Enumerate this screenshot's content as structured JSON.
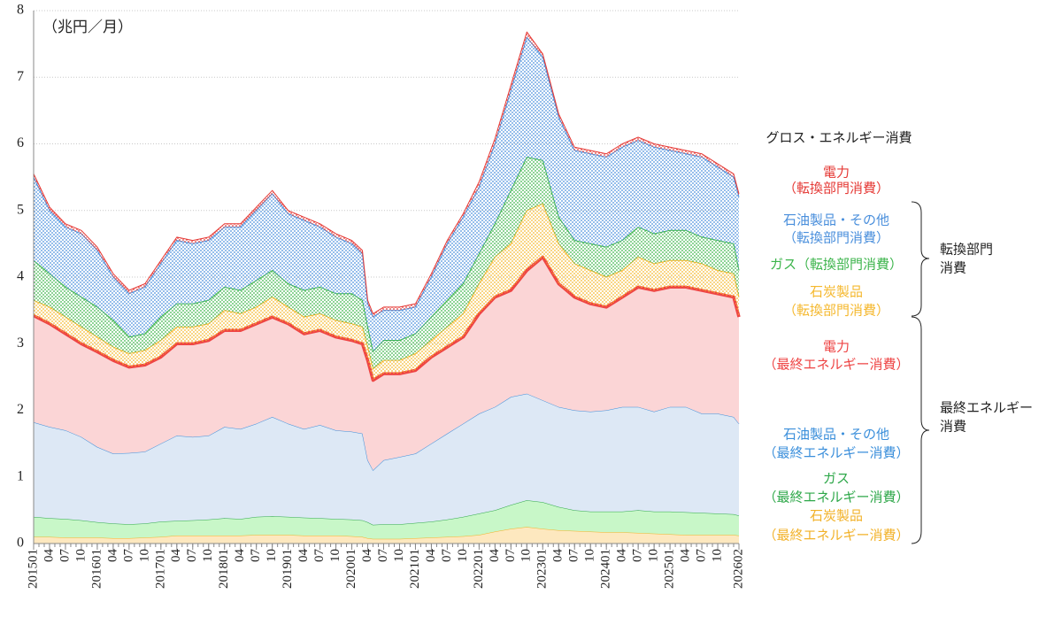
{
  "chart_data": {
    "type": "stacked-area",
    "unit_label": "（兆円／月）",
    "total_label": "グロス・エネルギー消費",
    "x": [
      "201501",
      "201504",
      "201507",
      "201510",
      "201601",
      "201604",
      "201607",
      "201610",
      "201701",
      "201704",
      "201707",
      "201710",
      "201801",
      "201804",
      "201807",
      "201810",
      "201901",
      "201904",
      "201907",
      "201910",
      "202001",
      "202003",
      "202004",
      "202005",
      "202007",
      "202010",
      "202101",
      "202104",
      "202107",
      "202110",
      "202201",
      "202204",
      "202207",
      "202210",
      "202301",
      "202304",
      "202307",
      "202310",
      "202401",
      "202404",
      "202407",
      "202410",
      "202501",
      "202504",
      "202507",
      "202510",
      "202601",
      "202602"
    ],
    "xlim": [
      "201501",
      "202602"
    ],
    "xticks": [
      {
        "value": "201501",
        "label": "201501"
      },
      {
        "value": "201504",
        "label": "04"
      },
      {
        "value": "201507",
        "label": "07"
      },
      {
        "value": "201510",
        "label": "10"
      },
      {
        "value": "201601",
        "label": "201601"
      },
      {
        "value": "201604",
        "label": "04"
      },
      {
        "value": "201607",
        "label": "07"
      },
      {
        "value": "201610",
        "label": "10"
      },
      {
        "value": "201701",
        "label": "201701"
      },
      {
        "value": "201704",
        "label": "04"
      },
      {
        "value": "201707",
        "label": "07"
      },
      {
        "value": "201710",
        "label": "10"
      },
      {
        "value": "201801",
        "label": "201801"
      },
      {
        "value": "201804",
        "label": "04"
      },
      {
        "value": "201807",
        "label": "07"
      },
      {
        "value": "201810",
        "label": "10"
      },
      {
        "value": "201901",
        "label": "201901"
      },
      {
        "value": "201904",
        "label": "04"
      },
      {
        "value": "201907",
        "label": "07"
      },
      {
        "value": "201910",
        "label": "10"
      },
      {
        "value": "202001",
        "label": "202001"
      },
      {
        "value": "202004",
        "label": "04"
      },
      {
        "value": "202007",
        "label": "07"
      },
      {
        "value": "202010",
        "label": "10"
      },
      {
        "value": "202101",
        "label": "202101"
      },
      {
        "value": "202104",
        "label": "04"
      },
      {
        "value": "202107",
        "label": "07"
      },
      {
        "value": "202110",
        "label": "10"
      },
      {
        "value": "202201",
        "label": "202201"
      },
      {
        "value": "202204",
        "label": "04"
      },
      {
        "value": "202207",
        "label": "07"
      },
      {
        "value": "202210",
        "label": "10"
      },
      {
        "value": "202301",
        "label": "202301"
      },
      {
        "value": "202304",
        "label": "04"
      },
      {
        "value": "202307",
        "label": "07"
      },
      {
        "value": "202310",
        "label": "10"
      },
      {
        "value": "202401",
        "label": "202401"
      },
      {
        "value": "202404",
        "label": "04"
      },
      {
        "value": "202407",
        "label": "07"
      },
      {
        "value": "202410",
        "label": "10"
      },
      {
        "value": "202501",
        "label": "202501"
      },
      {
        "value": "202504",
        "label": "04"
      },
      {
        "value": "202507",
        "label": "07"
      },
      {
        "value": "202510",
        "label": "10"
      },
      {
        "value": "202602",
        "label": "202602"
      }
    ],
    "ylim": [
      0,
      8
    ],
    "yticks": [
      0,
      1,
      2,
      3,
      4,
      5,
      6,
      7,
      8
    ],
    "grid": true,
    "series": [
      {
        "name": [
          "石炭製品",
          "（最終エネルギー消費）"
        ],
        "color": "#f2b22a",
        "fill": "#fde8bf",
        "values": [
          0.1,
          0.1,
          0.09,
          0.09,
          0.09,
          0.08,
          0.08,
          0.09,
          0.1,
          0.12,
          0.12,
          0.12,
          0.12,
          0.12,
          0.13,
          0.13,
          0.13,
          0.12,
          0.12,
          0.12,
          0.11,
          0.1,
          0.08,
          0.07,
          0.07,
          0.07,
          0.08,
          0.09,
          0.1,
          0.11,
          0.13,
          0.18,
          0.22,
          0.25,
          0.22,
          0.2,
          0.19,
          0.18,
          0.17,
          0.17,
          0.16,
          0.15,
          0.14,
          0.13,
          0.13,
          0.13,
          0.13,
          0.12
        ]
      },
      {
        "name": [
          "ガス",
          "（最終エネルギー消費）"
        ],
        "color": "#2fa84a",
        "fill": "#c8f7c8",
        "values": [
          0.3,
          0.28,
          0.28,
          0.26,
          0.23,
          0.22,
          0.21,
          0.21,
          0.23,
          0.22,
          0.23,
          0.24,
          0.26,
          0.25,
          0.27,
          0.28,
          0.27,
          0.27,
          0.26,
          0.25,
          0.25,
          0.25,
          0.24,
          0.21,
          0.22,
          0.22,
          0.23,
          0.24,
          0.26,
          0.29,
          0.32,
          0.32,
          0.36,
          0.4,
          0.4,
          0.35,
          0.31,
          0.3,
          0.31,
          0.31,
          0.34,
          0.33,
          0.34,
          0.34,
          0.33,
          0.32,
          0.31,
          0.3
        ]
      },
      {
        "name": [
          "石油製品・その他",
          "（最終エネルギー消費）"
        ],
        "color": "#3b8fdb",
        "fill": "#dde8f5",
        "values": [
          1.42,
          1.37,
          1.33,
          1.25,
          1.13,
          1.05,
          1.07,
          1.08,
          1.17,
          1.28,
          1.25,
          1.26,
          1.37,
          1.35,
          1.4,
          1.49,
          1.4,
          1.33,
          1.4,
          1.33,
          1.32,
          1.3,
          0.93,
          0.82,
          0.96,
          1.01,
          1.04,
          1.17,
          1.29,
          1.4,
          1.5,
          1.55,
          1.62,
          1.6,
          1.53,
          1.5,
          1.5,
          1.5,
          1.52,
          1.57,
          1.55,
          1.5,
          1.57,
          1.58,
          1.49,
          1.5,
          1.46,
          1.38
        ]
      },
      {
        "name": [
          "電力",
          "（最終エネルギー消費）"
        ],
        "color": "#ee4444",
        "fill": "#fbd5d6",
        "line_width": 3.5,
        "values": [
          1.6,
          1.55,
          1.45,
          1.4,
          1.43,
          1.4,
          1.29,
          1.3,
          1.3,
          1.38,
          1.4,
          1.43,
          1.45,
          1.48,
          1.5,
          1.5,
          1.5,
          1.43,
          1.42,
          1.4,
          1.37,
          1.35,
          1.5,
          1.35,
          1.3,
          1.25,
          1.25,
          1.3,
          1.3,
          1.3,
          1.5,
          1.65,
          1.6,
          1.85,
          2.15,
          1.85,
          1.7,
          1.62,
          1.55,
          1.65,
          1.8,
          1.82,
          1.8,
          1.8,
          1.85,
          1.8,
          1.8,
          1.6
        ]
      },
      {
        "name": [
          "石炭製品",
          "（転換部門消費）"
        ],
        "color": "#f5b82e",
        "fill_style": "dots",
        "values": [
          0.23,
          0.25,
          0.25,
          0.25,
          0.22,
          0.2,
          0.2,
          0.22,
          0.25,
          0.25,
          0.25,
          0.25,
          0.3,
          0.25,
          0.25,
          0.3,
          0.25,
          0.25,
          0.25,
          0.25,
          0.25,
          0.25,
          0.2,
          0.17,
          0.2,
          0.2,
          0.25,
          0.25,
          0.3,
          0.35,
          0.45,
          0.6,
          0.7,
          0.9,
          0.8,
          0.6,
          0.5,
          0.5,
          0.45,
          0.4,
          0.45,
          0.4,
          0.4,
          0.4,
          0.4,
          0.35,
          0.35,
          0.3
        ]
      },
      {
        "name": [
          "ガス（転換部門消費）"
        ],
        "color": "#3cb44b",
        "fill_style": "dots",
        "values": [
          0.6,
          0.5,
          0.45,
          0.45,
          0.45,
          0.4,
          0.25,
          0.25,
          0.35,
          0.35,
          0.35,
          0.35,
          0.35,
          0.35,
          0.4,
          0.4,
          0.35,
          0.4,
          0.4,
          0.4,
          0.45,
          0.4,
          0.3,
          0.26,
          0.3,
          0.3,
          0.3,
          0.35,
          0.4,
          0.45,
          0.45,
          0.5,
          0.8,
          0.8,
          0.65,
          0.4,
          0.35,
          0.4,
          0.45,
          0.45,
          0.45,
          0.45,
          0.45,
          0.45,
          0.4,
          0.45,
          0.45,
          0.4
        ]
      },
      {
        "name": [
          "石油製品・その他",
          "（転換部門消費）"
        ],
        "color": "#4a8fdc",
        "fill_style": "dots",
        "values": [
          1.25,
          0.95,
          0.9,
          0.95,
          0.85,
          0.65,
          0.65,
          0.7,
          0.8,
          0.95,
          0.9,
          0.9,
          0.9,
          0.95,
          1.05,
          1.15,
          1.05,
          1.05,
          0.9,
          0.85,
          0.75,
          0.7,
          0.35,
          0.52,
          0.45,
          0.45,
          0.4,
          0.6,
          0.85,
          1.0,
          1.0,
          1.2,
          1.5,
          1.8,
          1.55,
          1.5,
          1.35,
          1.35,
          1.35,
          1.4,
          1.3,
          1.3,
          1.2,
          1.15,
          1.2,
          1.1,
          1.0,
          1.1
        ]
      },
      {
        "name": [
          "電力",
          "（転換部門消費）"
        ],
        "color": "#e53935",
        "fill_style": "dots",
        "values": [
          0.05,
          0.05,
          0.05,
          0.05,
          0.05,
          0.05,
          0.05,
          0.05,
          0.05,
          0.05,
          0.05,
          0.05,
          0.05,
          0.05,
          0.05,
          0.05,
          0.05,
          0.05,
          0.05,
          0.05,
          0.05,
          0.05,
          0.05,
          0.05,
          0.05,
          0.05,
          0.05,
          0.05,
          0.05,
          0.05,
          0.08,
          0.08,
          0.08,
          0.08,
          0.05,
          0.05,
          0.05,
          0.05,
          0.05,
          0.05,
          0.05,
          0.05,
          0.05,
          0.05,
          0.05,
          0.05,
          0.05,
          0.05
        ]
      }
    ],
    "groups": [
      {
        "label": [
          "転換部門",
          "消費"
        ]
      },
      {
        "label": [
          "最終エネルギー",
          "消費"
        ]
      }
    ]
  }
}
